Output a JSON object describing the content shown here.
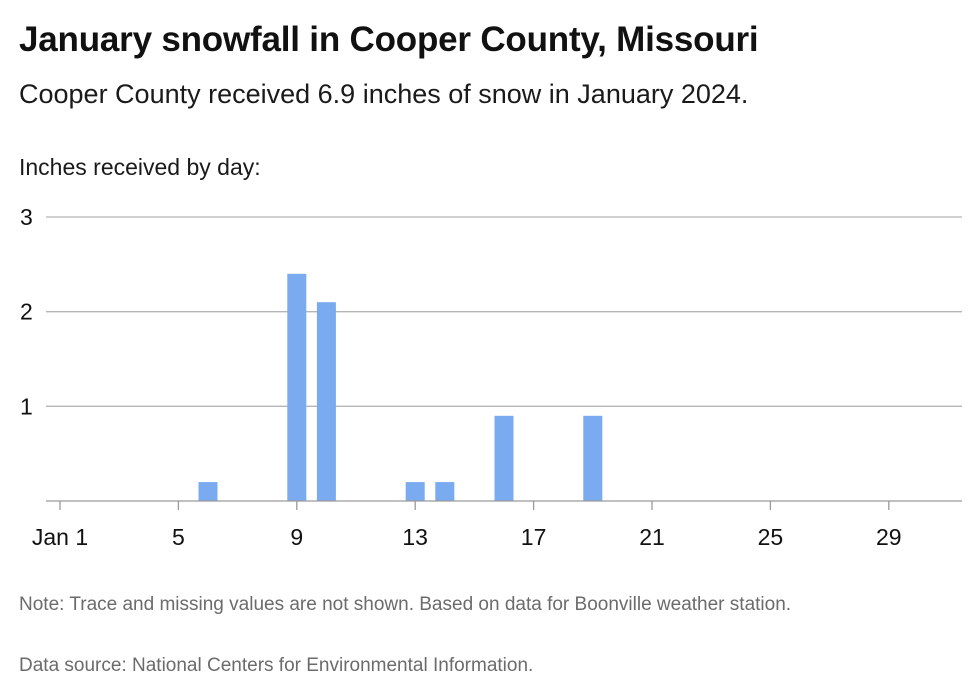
{
  "header": {
    "title": "January snowfall in Cooper County, Missouri",
    "subtitle": "Cooper County received 6.9 inches of snow in January 2024."
  },
  "footer": {
    "note": "Note: Trace and missing values are not shown. Based on data for Boonville weather station.",
    "source": "Data source: National Centers for Environmental Information."
  },
  "chart_data": {
    "type": "bar",
    "title": "January snowfall in Cooper County, Missouri",
    "subtitle": "Cooper County received 6.9 inches of snow in January 2024.",
    "ylabel": "Inches received by day:",
    "xlabel": "",
    "x": [
      1,
      2,
      3,
      4,
      5,
      6,
      7,
      8,
      9,
      10,
      11,
      12,
      13,
      14,
      15,
      16,
      17,
      18,
      19,
      20,
      21,
      22,
      23,
      24,
      25,
      26,
      27,
      28,
      29,
      30,
      31
    ],
    "values": [
      0,
      0,
      0,
      0,
      0,
      0.2,
      0,
      0,
      2.4,
      2.1,
      0,
      0,
      0.2,
      0.2,
      0,
      0.9,
      0,
      0,
      0.9,
      0,
      0,
      0,
      0,
      0,
      0,
      0,
      0,
      0,
      0,
      0,
      0
    ],
    "ylim": [
      0,
      3
    ],
    "yticks": [
      {
        "value": 1,
        "label": "1"
      },
      {
        "value": 2,
        "label": "2"
      },
      {
        "value": 3,
        "label": "3"
      }
    ],
    "xticks": [
      {
        "value": 1,
        "label": "Jan 1"
      },
      {
        "value": 5,
        "label": "5"
      },
      {
        "value": 9,
        "label": "9"
      },
      {
        "value": 13,
        "label": "13"
      },
      {
        "value": 17,
        "label": "17"
      },
      {
        "value": 21,
        "label": "21"
      },
      {
        "value": 25,
        "label": "25"
      },
      {
        "value": 29,
        "label": "29"
      }
    ],
    "grid": true,
    "bar_color": "#7aaaf0",
    "grid_color": "#b5b5b5",
    "axis_color": "#9a9a9a"
  }
}
